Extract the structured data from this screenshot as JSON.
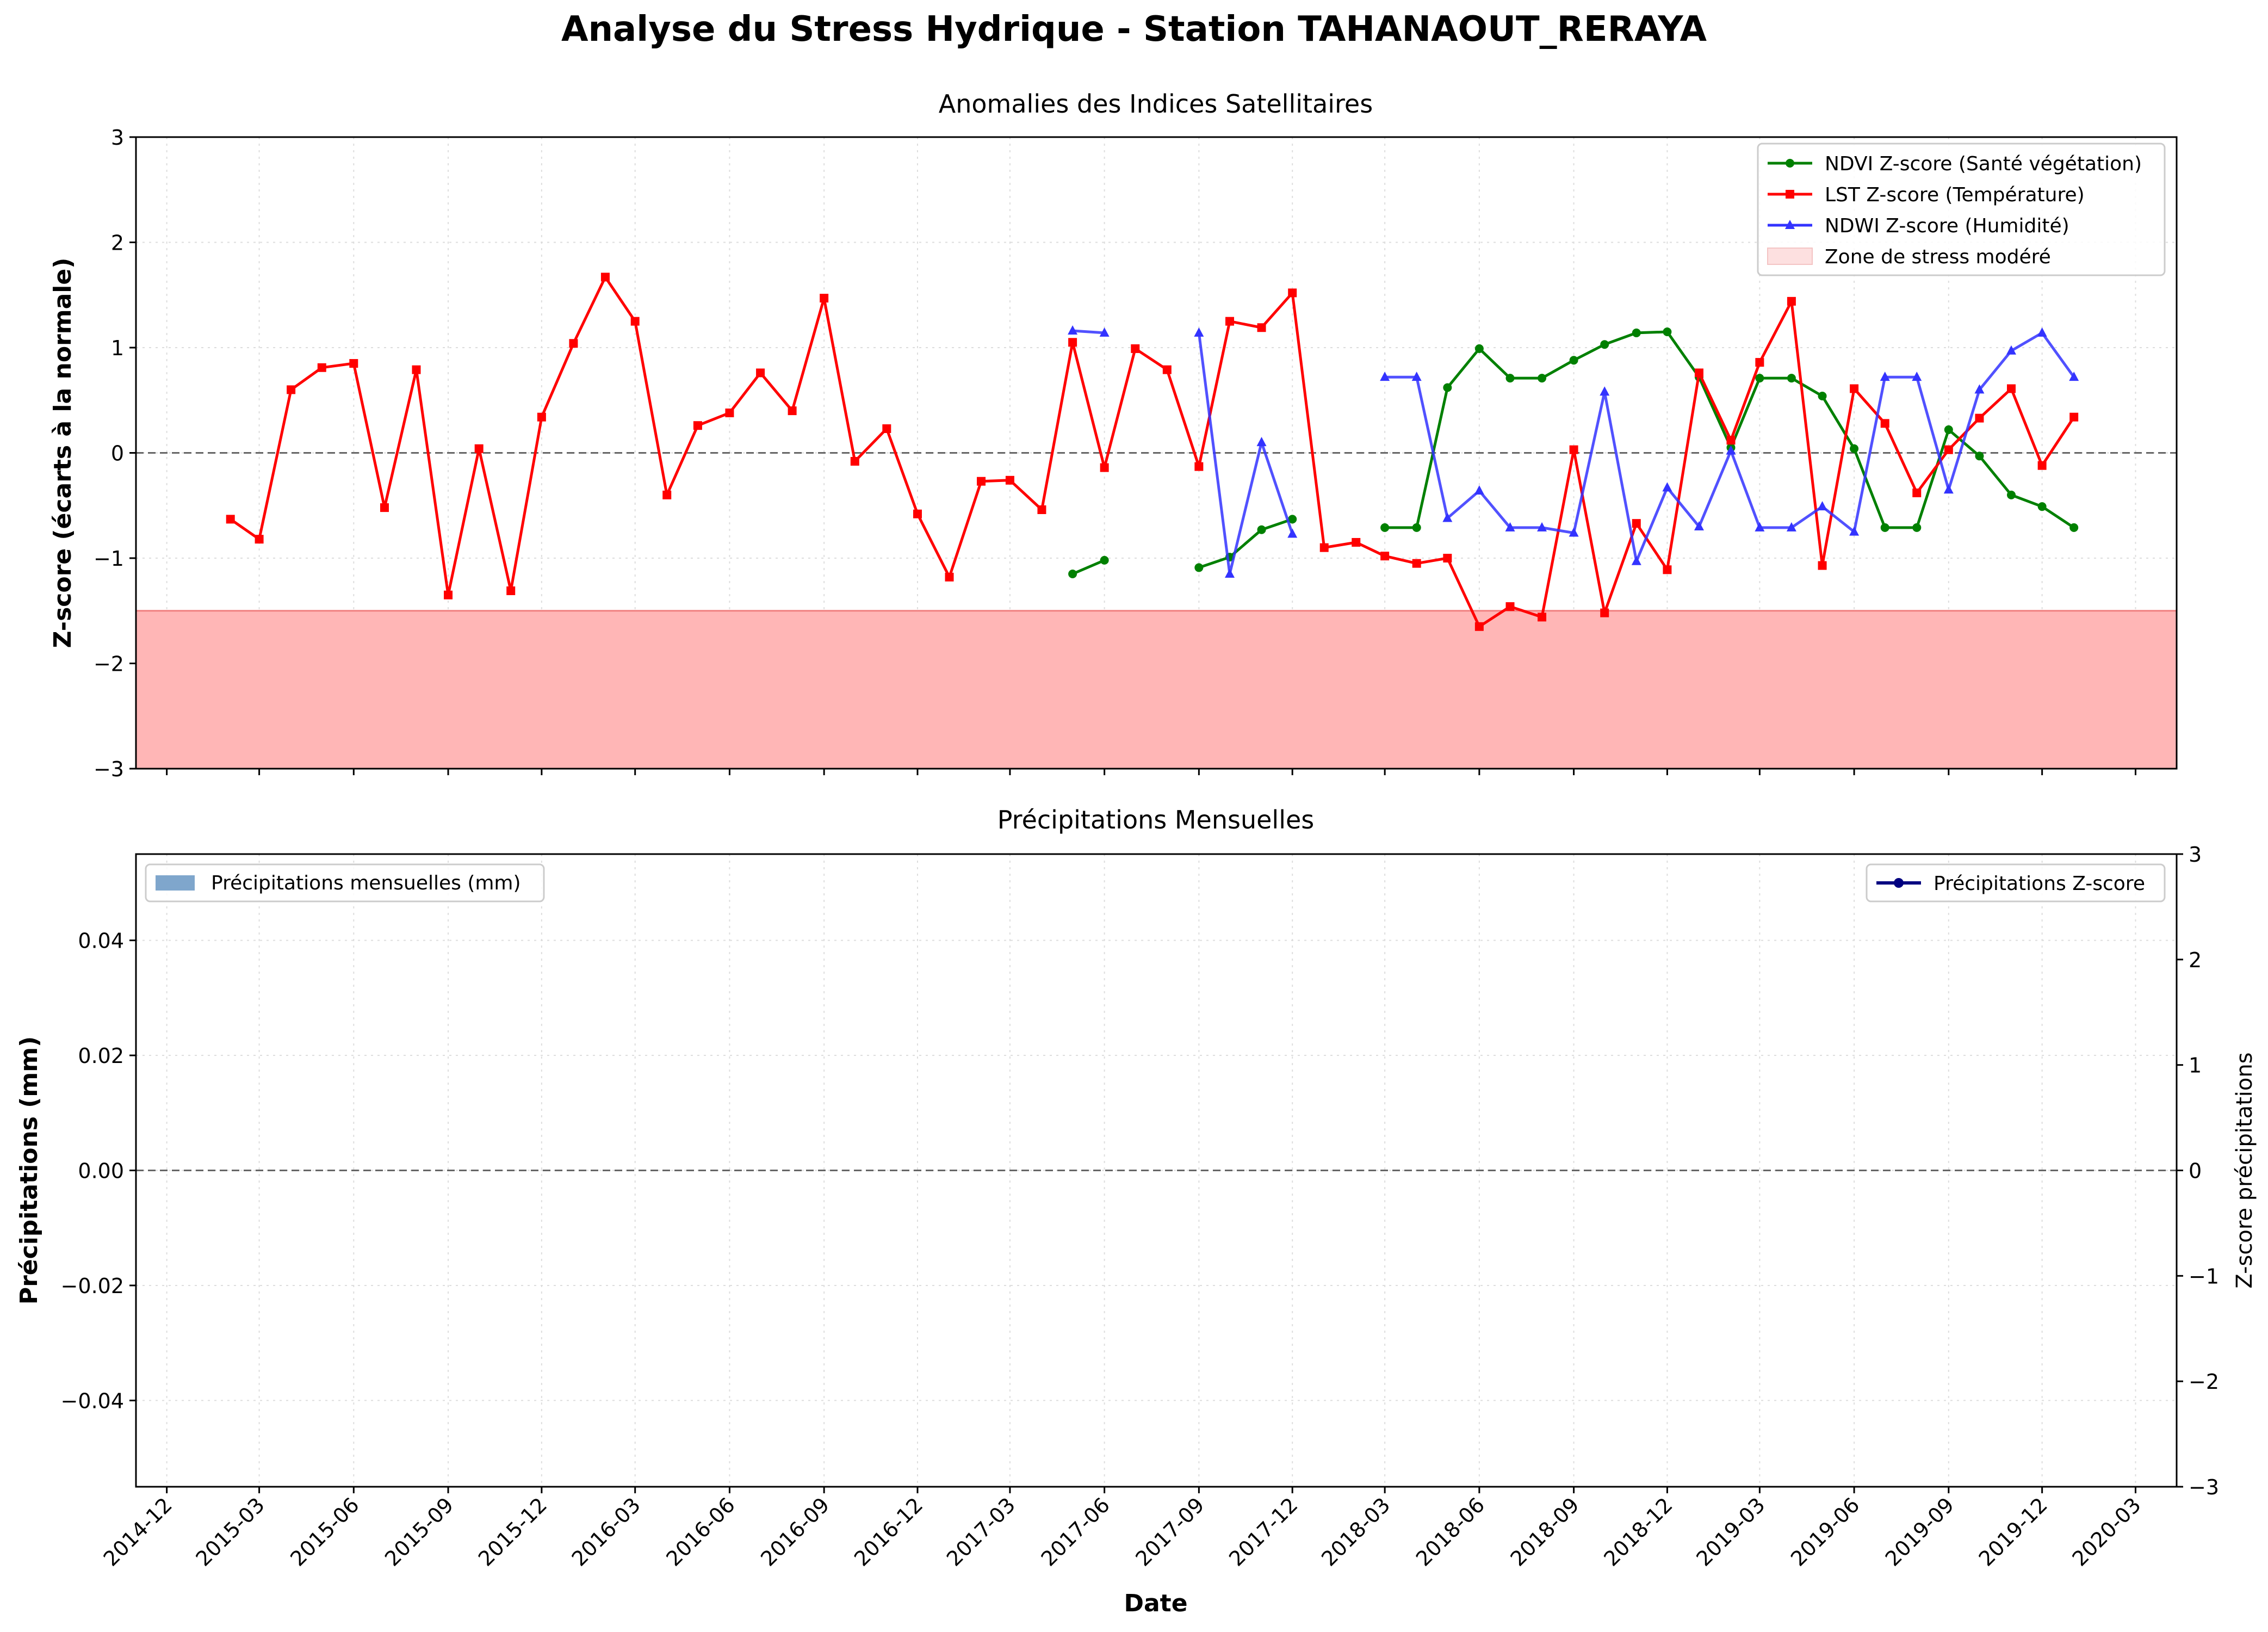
{
  "suptitle": "Analyse du Stress Hydrique - Station TAHANAOUT_RERAYA",
  "colors": {
    "ndvi": "#008000",
    "lst": "#ff0000",
    "ndwi": "#3333ff",
    "stress_fill": "#ffb6b6",
    "precip_bar": "#7fa6cc",
    "precip_z": "#000080",
    "grid": "#dddddd"
  },
  "chart_data": [
    {
      "type": "line",
      "title": "Anomalies des Indices Satellitaires",
      "xlabel": "",
      "ylabel": "Z-score (écarts à la normale)",
      "ylim": [
        -3,
        3
      ],
      "yticks": [
        "3",
        "2",
        "1",
        "0",
        "−1",
        "−2",
        "−3"
      ],
      "xlim": [
        "2014-11-01",
        "2020-04-10"
      ],
      "grid": true,
      "legend_position": "top-right",
      "reference_line": 0,
      "stress_zone": {
        "label": "Zone de stress modéré",
        "from": -3,
        "to": -1.5
      },
      "series": [
        {
          "name": "NDVI Z-score (Santé végétation)",
          "color_key": "ndvi",
          "marker": "circle",
          "segments": [
            [
              [
                "2017-05-01",
                -1.15
              ],
              [
                "2017-06-01",
                -1.02
              ]
            ],
            [
              [
                "2017-09-01",
                -1.09
              ],
              [
                "2017-10-01",
                -0.99
              ],
              [
                "2017-11-01",
                -0.73
              ],
              [
                "2017-12-01",
                -0.63
              ]
            ],
            [
              [
                "2018-03-01",
                -0.71
              ],
              [
                "2018-04-01",
                -0.71
              ],
              [
                "2018-05-01",
                0.62
              ],
              [
                "2018-06-01",
                0.99
              ],
              [
                "2018-07-01",
                0.71
              ],
              [
                "2018-08-01",
                0.71
              ],
              [
                "2018-09-01",
                0.88
              ],
              [
                "2018-10-01",
                1.03
              ],
              [
                "2018-11-01",
                1.14
              ],
              [
                "2018-12-01",
                1.15
              ],
              [
                "2019-01-01",
                0.72
              ],
              [
                "2019-02-01",
                0.05
              ],
              [
                "2019-03-01",
                0.71
              ],
              [
                "2019-04-01",
                0.71
              ],
              [
                "2019-05-01",
                0.54
              ],
              [
                "2019-06-01",
                0.04
              ],
              [
                "2019-07-01",
                -0.71
              ],
              [
                "2019-08-01",
                -0.71
              ],
              [
                "2019-09-01",
                0.22
              ],
              [
                "2019-10-01",
                -0.03
              ],
              [
                "2019-11-01",
                -0.4
              ],
              [
                "2019-12-01",
                -0.51
              ],
              [
                "2020-01-01",
                -0.71
              ]
            ]
          ]
        },
        {
          "name": "LST Z-score (Température)",
          "color_key": "lst",
          "marker": "square",
          "segments": [
            [
              [
                "2015-02-01",
                -0.63
              ],
              [
                "2015-03-01",
                -0.82
              ],
              [
                "2015-04-01",
                0.6
              ],
              [
                "2015-05-01",
                0.81
              ],
              [
                "2015-06-01",
                0.85
              ],
              [
                "2015-07-01",
                -0.52
              ],
              [
                "2015-08-01",
                0.79
              ],
              [
                "2015-09-01",
                -1.35
              ],
              [
                "2015-10-01",
                0.04
              ],
              [
                "2015-11-01",
                -1.31
              ],
              [
                "2015-12-01",
                0.34
              ],
              [
                "2016-01-01",
                1.04
              ],
              [
                "2016-02-01",
                1.67
              ],
              [
                "2016-03-01",
                1.25
              ],
              [
                "2016-04-01",
                -0.4
              ],
              [
                "2016-05-01",
                0.26
              ],
              [
                "2016-06-01",
                0.38
              ],
              [
                "2016-07-01",
                0.76
              ],
              [
                "2016-08-01",
                0.4
              ],
              [
                "2016-09-01",
                1.47
              ],
              [
                "2016-10-01",
                -0.08
              ],
              [
                "2016-11-01",
                0.23
              ],
              [
                "2016-12-01",
                -0.58
              ],
              [
                "2017-01-01",
                -1.18
              ],
              [
                "2017-02-01",
                -0.27
              ],
              [
                "2017-03-01",
                -0.26
              ],
              [
                "2017-04-01",
                -0.54
              ],
              [
                "2017-05-01",
                1.05
              ],
              [
                "2017-06-01",
                -0.14
              ],
              [
                "2017-07-01",
                0.99
              ],
              [
                "2017-08-01",
                0.79
              ],
              [
                "2017-09-01",
                -0.13
              ],
              [
                "2017-10-01",
                1.25
              ],
              [
                "2017-11-01",
                1.19
              ],
              [
                "2017-12-01",
                1.52
              ],
              [
                "2018-01-01",
                -0.9
              ],
              [
                "2018-02-01",
                -0.85
              ],
              [
                "2018-03-01",
                -0.98
              ],
              [
                "2018-04-01",
                -1.05
              ],
              [
                "2018-05-01",
                -1.0
              ],
              [
                "2018-06-01",
                -1.65
              ],
              [
                "2018-07-01",
                -1.46
              ],
              [
                "2018-08-01",
                -1.56
              ],
              [
                "2018-09-01",
                0.03
              ],
              [
                "2018-10-01",
                -1.52
              ],
              [
                "2018-11-01",
                -0.67
              ],
              [
                "2018-12-01",
                -1.11
              ],
              [
                "2019-01-01",
                0.76
              ],
              [
                "2019-02-01",
                0.12
              ],
              [
                "2019-03-01",
                0.86
              ],
              [
                "2019-04-01",
                1.44
              ],
              [
                "2019-05-01",
                -1.07
              ],
              [
                "2019-06-01",
                0.61
              ],
              [
                "2019-07-01",
                0.28
              ],
              [
                "2019-08-01",
                -0.38
              ],
              [
                "2019-09-01",
                0.03
              ],
              [
                "2019-10-01",
                0.33
              ],
              [
                "2019-11-01",
                0.61
              ],
              [
                "2019-12-01",
                -0.12
              ],
              [
                "2020-01-01",
                0.34
              ]
            ]
          ]
        },
        {
          "name": "NDWI Z-score (Humidité)",
          "color_key": "ndwi",
          "marker": "triangle",
          "segments": [
            [
              [
                "2017-05-01",
                1.16
              ],
              [
                "2017-06-01",
                1.14
              ]
            ],
            [
              [
                "2017-09-01",
                1.14
              ],
              [
                "2017-10-01",
                -1.15
              ],
              [
                "2017-11-01",
                0.1
              ],
              [
                "2017-12-01",
                -0.77
              ]
            ],
            [
              [
                "2018-03-01",
                0.72
              ],
              [
                "2018-04-01",
                0.72
              ],
              [
                "2018-05-01",
                -0.62
              ],
              [
                "2018-06-01",
                -0.36
              ],
              [
                "2018-07-01",
                -0.71
              ],
              [
                "2018-08-01",
                -0.71
              ],
              [
                "2018-09-01",
                -0.76
              ],
              [
                "2018-10-01",
                0.58
              ],
              [
                "2018-11-01",
                -1.03
              ],
              [
                "2018-12-01",
                -0.33
              ],
              [
                "2019-01-01",
                -0.7
              ],
              [
                "2019-02-01",
                0.02
              ],
              [
                "2019-03-01",
                -0.71
              ],
              [
                "2019-04-01",
                -0.71
              ],
              [
                "2019-05-01",
                -0.51
              ],
              [
                "2019-06-01",
                -0.75
              ],
              [
                "2019-07-01",
                0.72
              ],
              [
                "2019-08-01",
                0.72
              ],
              [
                "2019-09-01",
                -0.35
              ],
              [
                "2019-10-01",
                0.6
              ],
              [
                "2019-11-01",
                0.97
              ],
              [
                "2019-12-01",
                1.14
              ],
              [
                "2020-01-01",
                0.72
              ]
            ]
          ]
        }
      ]
    },
    {
      "type": "bar",
      "title": "Précipitations Mensuelles",
      "xlabel": "Date",
      "ylabel": "Précipitations (mm)",
      "ylim": [
        -0.055,
        0.055
      ],
      "yticks": [
        "0.04",
        "0.02",
        "0.00",
        "−0.02",
        "−0.04"
      ],
      "y2label": "Z-score précipitations",
      "y2lim": [
        -3,
        3
      ],
      "y2ticks": [
        "3",
        "2",
        "1",
        "0",
        "−1",
        "−2",
        "−3"
      ],
      "xlim": [
        "2014-11-01",
        "2020-04-10"
      ],
      "grid": true,
      "reference_line": 0,
      "series": [
        {
          "name": "Précipitations mensuelles (mm)",
          "values": [],
          "legend_position": "top-left"
        },
        {
          "name": "Précipitations Z-score",
          "values": [],
          "legend_position": "top-right"
        }
      ],
      "xticks": [
        "2014-12",
        "2015-03",
        "2015-06",
        "2015-09",
        "2015-12",
        "2016-03",
        "2016-06",
        "2016-09",
        "2016-12",
        "2017-03",
        "2017-06",
        "2017-09",
        "2017-12",
        "2018-03",
        "2018-06",
        "2018-09",
        "2018-12",
        "2019-03",
        "2019-06",
        "2019-09",
        "2019-12",
        "2020-03"
      ]
    }
  ]
}
